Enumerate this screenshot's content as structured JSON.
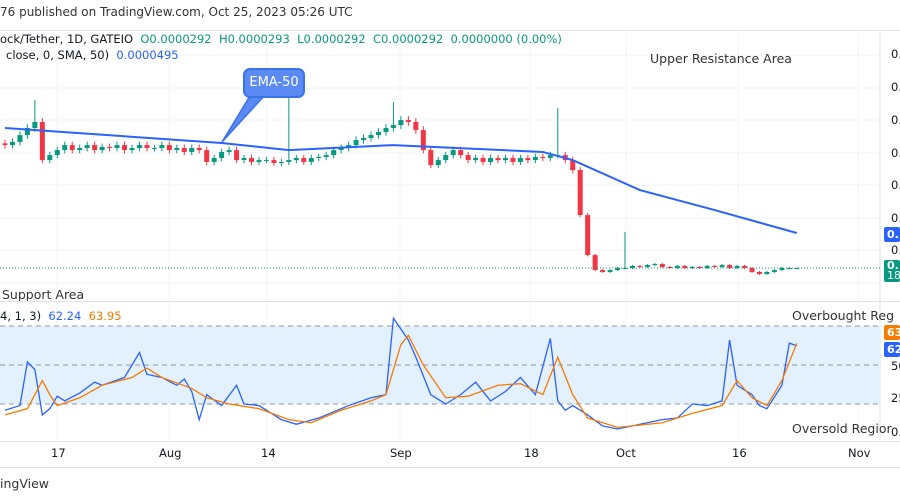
{
  "header": {
    "published": "76 published on TradingView.com, Oct 25, 2023 05:26 UTC"
  },
  "legend": {
    "symbol": "ock/Tether, 1D, GATEIO",
    "open": "O0.0000292",
    "high": "H0.0000293",
    "low": "L0.0000292",
    "close": "C0.0000292",
    "change": "0.0000000 (0.00%)",
    "ma_label": "close, 0, SMA, 50)",
    "ma_value": "0.0000495"
  },
  "rsi_legend": {
    "params": "4, 1, 3)",
    "k": "62.24",
    "d": "63.95"
  },
  "annotations": {
    "callout": "EMA-50",
    "resistance": "Upper Resistance Area",
    "support": "Support Area",
    "overbought": "Overbought Reg",
    "oversold": "Oversold Regior"
  },
  "price_axis": {
    "labels": [
      "0.",
      "0.",
      "0.",
      "0.",
      "0.",
      "0.",
      "0."
    ],
    "ma_tag": "0.",
    "price_tag": "0.",
    "price_tag_sub": "18"
  },
  "rsi_axis": {
    "labels": [
      "50",
      "25",
      "0."
    ],
    "d_tag": "63",
    "k_tag": "62"
  },
  "time_axis": [
    "17",
    "Aug",
    "14",
    "Sep",
    "18",
    "Oct",
    "16",
    "Nov"
  ],
  "footer": {
    "logo": "ingView"
  },
  "colors": {
    "up": "#089981",
    "down": "#f23645",
    "ema": "#2962ff",
    "rsi_k": "#2962ff",
    "rsi_d": "#f57c00",
    "band": "#e3f0fd"
  },
  "chart_data": [
    {
      "type": "candlestick",
      "title": "",
      "ylabel": "",
      "candles": [
        [
          "2023-07-10",
          0.0001005
        ],
        [
          "2023-07-11",
          0.0001023
        ],
        [
          "2023-07-12",
          0.0001063
        ],
        [
          "2023-07-13",
          0.0001104
        ],
        [
          "2023-07-14",
          0.0001139,
          0.0001266
        ],
        [
          "2023-07-15",
          9.18e-05
        ],
        [
          "2023-07-16",
          9.47e-05
        ],
        [
          "2023-07-17",
          9.76e-05
        ],
        [
          "2023-07-18",
          0.0001005
        ],
        [
          "2023-07-19",
          9.76e-05
        ],
        [
          "2023-07-20",
          9.88e-05
        ],
        [
          "2023-07-21",
          0.0001005
        ],
        [
          "2023-07-22",
          9.76e-05
        ],
        [
          "2023-07-23",
          9.94e-05
        ],
        [
          "2023-07-24",
          9.88e-05
        ],
        [
          "2023-07-25",
          0.0001005
        ],
        [
          "2023-07-26",
          9.76e-05
        ],
        [
          "2023-07-27",
          9.88e-05
        ],
        [
          "2023-07-28",
          0.0001005
        ],
        [
          "2023-07-29",
          9.88e-05
        ],
        [
          "2023-07-30",
          9.88e-05
        ],
        [
          "2023-07-31",
          0.0001005
        ],
        [
          "2023-08-01",
          9.76e-05
        ],
        [
          "2023-08-02",
          9.88e-05
        ],
        [
          "2023-08-03",
          9.65e-05
        ],
        [
          "2023-08-04",
          9.88e-05
        ],
        [
          "2023-08-05",
          9.76e-05
        ],
        [
          "2023-08-06",
          9.07e-05
        ],
        [
          "2023-08-07",
          9.3e-05
        ],
        [
          "2023-08-08",
          9.65e-05
        ],
        [
          "2023-08-09",
          9.76e-05
        ],
        [
          "2023-08-10",
          9.18e-05
        ],
        [
          "2023-08-11",
          9.3e-05
        ],
        [
          "2023-08-12",
          9.07e-05
        ],
        [
          "2023-08-13",
          9.18e-05
        ],
        [
          "2023-08-14",
          9.18e-05
        ],
        [
          "2023-08-15",
          9.01e-05
        ],
        [
          "2023-08-16",
          9.07e-05
        ],
        [
          "2023-08-17",
          9.18e-05,
          0.0001382
        ],
        [
          "2023-08-18",
          9.3e-05
        ],
        [
          "2023-08-19",
          9.07e-05
        ],
        [
          "2023-08-20",
          9.3e-05
        ],
        [
          "2023-08-21",
          9.36e-05
        ],
        [
          "2023-08-22",
          9.47e-05
        ],
        [
          "2023-08-23",
          9.76e-05
        ],
        [
          "2023-08-24",
          9.88e-05
        ],
        [
          "2023-08-25",
          0.0001005
        ],
        [
          "2023-08-26",
          0.0001034
        ],
        [
          "2023-08-27",
          0.0001046
        ],
        [
          "2023-08-28",
          0.0001063
        ],
        [
          "2023-08-29",
          0.0001081
        ],
        [
          "2023-08-30",
          0.0001104
        ],
        [
          "2023-08-31",
          0.0001121,
          0.0001255
        ],
        [
          "2023-09-01",
          0.000115
        ],
        [
          "2023-09-02",
          0.0001139
        ],
        [
          "2023-09-03",
          0.0001092
        ],
        [
          "2023-09-04",
          9.76e-05
        ],
        [
          "2023-09-05",
          8.89e-05
        ],
        [
          "2023-09-06",
          9.18e-05
        ],
        [
          "2023-09-07",
          9.47e-05
        ],
        [
          "2023-09-08",
          9.76e-05
        ],
        [
          "2023-09-09",
          9.47e-05
        ],
        [
          "2023-09-10",
          9.18e-05
        ],
        [
          "2023-09-11",
          9.3e-05
        ],
        [
          "2023-09-12",
          9.07e-05
        ],
        [
          "2023-09-13",
          9.3e-05
        ],
        [
          "2023-09-14",
          9.18e-05
        ],
        [
          "2023-09-15",
          9.3e-05
        ],
        [
          "2023-09-16",
          9.07e-05
        ],
        [
          "2023-09-17",
          9.3e-05
        ],
        [
          "2023-09-18",
          9.18e-05
        ],
        [
          "2023-09-19",
          9.36e-05
        ],
        [
          "2023-09-20",
          9.3e-05
        ],
        [
          "2023-09-21",
          9.47e-05
        ],
        [
          "2023-09-22",
          9.47e-05,
          0.000122
        ],
        [
          "2023-09-23",
          9.18e-05
        ],
        [
          "2023-09-24",
          8.6e-05
        ],
        [
          "2023-09-25",
          5.99e-05
        ],
        [
          "2023-09-26",
          3.67e-05
        ],
        [
          "2023-09-27",
          2.8e-05
        ],
        [
          "2023-09-28",
          2.69e-05
        ],
        [
          "2023-09-29",
          2.8e-05
        ],
        [
          "2023-09-30",
          2.92e-05
        ],
        [
          "2023-10-01",
          2.92e-05,
          5.01e-05
        ],
        [
          "2023-10-02",
          3.04e-05
        ],
        [
          "2023-10-03",
          2.98e-05
        ],
        [
          "2023-10-04",
          3.09e-05
        ],
        [
          "2023-10-05",
          3.15e-05
        ],
        [
          "2023-10-06",
          2.98e-05
        ],
        [
          "2023-10-07",
          2.92e-05
        ],
        [
          "2023-10-08",
          3.04e-05
        ],
        [
          "2023-10-09",
          2.92e-05
        ],
        [
          "2023-10-10",
          2.98e-05
        ],
        [
          "2023-10-11",
          2.92e-05
        ],
        [
          "2023-10-12",
          3.04e-05
        ],
        [
          "2023-10-13",
          2.98e-05
        ],
        [
          "2023-10-14",
          3.09e-05
        ],
        [
          "2023-10-15",
          2.92e-05
        ],
        [
          "2023-10-16",
          3.04e-05
        ],
        [
          "2023-10-17",
          2.92e-05
        ],
        [
          "2023-10-18",
          2.69e-05
        ],
        [
          "2023-10-19",
          2.57e-05
        ],
        [
          "2023-10-20",
          2.69e-05
        ],
        [
          "2023-10-21",
          2.8e-05
        ],
        [
          "2023-10-22",
          2.92e-05
        ],
        [
          "2023-10-23",
          2.92e-05
        ],
        [
          "2023-10-24",
          2.92e-05,
          2.93e-05
        ]
      ],
      "ma_line": [
        [
          "2023-07-10",
          0.0001104
        ],
        [
          "2023-08-08",
          0.0001017
        ],
        [
          "2023-08-17",
          9.76e-05
        ],
        [
          "2023-08-31",
          0.0001005
        ],
        [
          "2023-09-20",
          9.65e-05
        ],
        [
          "2023-09-24",
          9.18e-05
        ],
        [
          "2023-10-03",
          7.44e-05
        ],
        [
          "2023-10-13",
          6.28e-05
        ],
        [
          "2023-10-24",
          4.95e-05
        ]
      ]
    },
    {
      "type": "line",
      "title": "",
      "ylim": [
        0,
        100
      ],
      "levels": [
        75,
        50,
        25
      ],
      "series": [
        {
          "values": [
            [
              "2023-07-10",
              21
            ],
            [
              "2023-07-12",
              24
            ],
            [
              "2023-07-13",
              52
            ],
            [
              "2023-07-14",
              47
            ],
            [
              "2023-07-15",
              18
            ],
            [
              "2023-07-16",
              22
            ],
            [
              "2023-07-17",
              30
            ],
            [
              "2023-07-18",
              27
            ],
            [
              "2023-07-20",
              32
            ],
            [
              "2023-07-22",
              39
            ],
            [
              "2023-07-23",
              37
            ],
            [
              "2023-07-26",
              42
            ],
            [
              "2023-07-28",
              58
            ],
            [
              "2023-07-29",
              44
            ],
            [
              "2023-07-31",
              42
            ],
            [
              "2023-08-02",
              37
            ],
            [
              "2023-08-03",
              41
            ],
            [
              "2023-08-04",
              33
            ],
            [
              "2023-08-05",
              15
            ],
            [
              "2023-08-06",
              31
            ],
            [
              "2023-08-08",
              24
            ],
            [
              "2023-08-10",
              37
            ],
            [
              "2023-08-11",
              25
            ],
            [
              "2023-08-13",
              24
            ],
            [
              "2023-08-16",
              15
            ],
            [
              "2023-08-18",
              12
            ],
            [
              "2023-08-21",
              16
            ],
            [
              "2023-08-25",
              24
            ],
            [
              "2023-08-28",
              29
            ],
            [
              "2023-08-30",
              31
            ],
            [
              "2023-08-31",
              80
            ],
            [
              "2023-09-02",
              66
            ],
            [
              "2023-09-03",
              55
            ],
            [
              "2023-09-05",
              31
            ],
            [
              "2023-09-07",
              25
            ],
            [
              "2023-09-09",
              31
            ],
            [
              "2023-09-11",
              39
            ],
            [
              "2023-09-13",
              27
            ],
            [
              "2023-09-15",
              33
            ],
            [
              "2023-09-17",
              42
            ],
            [
              "2023-09-19",
              31
            ],
            [
              "2023-09-21",
              67
            ],
            [
              "2023-09-22",
              27
            ],
            [
              "2023-09-23",
              21
            ],
            [
              "2023-09-24",
              24
            ],
            [
              "2023-09-26",
              18
            ],
            [
              "2023-09-28",
              11
            ],
            [
              "2023-09-30",
              9
            ],
            [
              "2023-10-03",
              12
            ],
            [
              "2023-10-06",
              15
            ],
            [
              "2023-10-08",
              16
            ],
            [
              "2023-10-10",
              25
            ],
            [
              "2023-10-12",
              24
            ],
            [
              "2023-10-14",
              27
            ],
            [
              "2023-10-15",
              66
            ],
            [
              "2023-10-16",
              37
            ],
            [
              "2023-10-18",
              31
            ],
            [
              "2023-10-19",
              24
            ],
            [
              "2023-10-20",
              22
            ],
            [
              "2023-10-22",
              37
            ],
            [
              "2023-10-23",
              64
            ],
            [
              "2023-10-24",
              62.24
            ]
          ]
        },
        {
          "values": [
            [
              "2023-07-10",
              18
            ],
            [
              "2023-07-13",
              22
            ],
            [
              "2023-07-15",
              40
            ],
            [
              "2023-07-16",
              31
            ],
            [
              "2023-07-17",
              24
            ],
            [
              "2023-07-20",
              29
            ],
            [
              "2023-07-23",
              37
            ],
            [
              "2023-07-27",
              42
            ],
            [
              "2023-07-29",
              48
            ],
            [
              "2023-07-31",
              42
            ],
            [
              "2023-08-04",
              35
            ],
            [
              "2023-08-06",
              29
            ],
            [
              "2023-08-09",
              25
            ],
            [
              "2023-08-13",
              22
            ],
            [
              "2023-08-17",
              15
            ],
            [
              "2023-08-20",
              13
            ],
            [
              "2023-08-24",
              21
            ],
            [
              "2023-08-28",
              27
            ],
            [
              "2023-08-30",
              31
            ],
            [
              "2023-09-01",
              63
            ],
            [
              "2023-09-02",
              69
            ],
            [
              "2023-09-04",
              50
            ],
            [
              "2023-09-07",
              29
            ],
            [
              "2023-09-10",
              30
            ],
            [
              "2023-09-14",
              37
            ],
            [
              "2023-09-17",
              38
            ],
            [
              "2023-09-20",
              31
            ],
            [
              "2023-09-22",
              55
            ],
            [
              "2023-09-24",
              31
            ],
            [
              "2023-09-26",
              16
            ],
            [
              "2023-09-30",
              10
            ],
            [
              "2023-10-06",
              13
            ],
            [
              "2023-10-10",
              19
            ],
            [
              "2023-10-14",
              24
            ],
            [
              "2023-10-16",
              40
            ],
            [
              "2023-10-18",
              29
            ],
            [
              "2023-10-20",
              24
            ],
            [
              "2023-10-22",
              40
            ],
            [
              "2023-10-24",
              63.95
            ]
          ]
        }
      ]
    }
  ]
}
